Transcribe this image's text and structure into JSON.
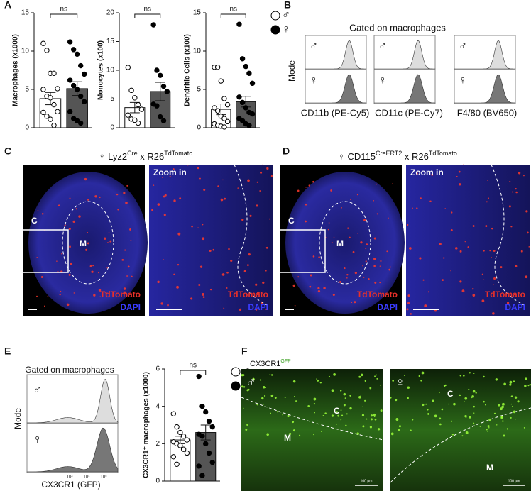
{
  "panel_labels": [
    "A",
    "B",
    "C",
    "D",
    "E",
    "F"
  ],
  "chart_data": [
    {
      "type": "bar",
      "ylabel": "Macrophages (x1000)",
      "ylim": [
        0,
        15
      ],
      "yticks": [
        0,
        5,
        10,
        15
      ],
      "annotation": "ns",
      "series": [
        {
          "name": "♂",
          "color": "#ffffff",
          "values": [
            3.8
          ],
          "errors": [
            0.8
          ],
          "points": [
            11,
            10.1,
            7.1,
            7.1,
            5.1,
            5.0,
            4.1,
            3.9,
            3.0,
            2.1,
            2.0,
            1.5,
            1.1,
            0.3
          ]
        },
        {
          "name": "♀",
          "color": "#555555",
          "values": [
            5.1
          ],
          "errors": [
            0.9
          ],
          "points": [
            11.2,
            10.2,
            9.6,
            8.1,
            7.0,
            6.2,
            5.5,
            5.0,
            4.1,
            3.4,
            2.1,
            1.2,
            0.9,
            0.6
          ]
        }
      ]
    },
    {
      "type": "bar",
      "ylabel": "Monocytes (x100)",
      "ylim": [
        0,
        20
      ],
      "yticks": [
        0,
        5,
        10,
        15,
        20
      ],
      "annotation": "ns",
      "series": [
        {
          "name": "♂",
          "color": "#ffffff",
          "values": [
            3.5
          ],
          "errors": [
            0.9
          ],
          "points": [
            10.5,
            6.5,
            5.2,
            4.0,
            3.2,
            2.2,
            1.5,
            1.3,
            0.8
          ]
        },
        {
          "name": "♀",
          "color": "#555555",
          "values": [
            6.3
          ],
          "errors": [
            1.6
          ],
          "points": [
            17.9,
            10.0,
            9.1,
            7.2,
            6.3,
            4.1,
            3.8,
            1.9,
            1.2
          ]
        }
      ]
    },
    {
      "type": "bar",
      "ylabel": "Dendritic Cells (x100)",
      "ylim": [
        0,
        15
      ],
      "yticks": [
        0,
        5,
        10,
        15
      ],
      "annotation": "ns",
      "legend": "right",
      "series": [
        {
          "name": "♂",
          "color": "#ffffff",
          "values": [
            2.4
          ],
          "errors": [
            0.7
          ],
          "points": [
            7.9,
            7.9,
            6.1,
            3.8,
            3.0,
            2.6,
            2.2,
            1.5,
            1.2,
            0.8,
            0.5,
            0.3,
            0.2,
            0.1
          ]
        },
        {
          "name": "♀",
          "color": "#555555",
          "values": [
            3.4
          ],
          "errors": [
            0.7
          ],
          "points": [
            13.5,
            9.0,
            8.0,
            7.1,
            5.8,
            4.0,
            3.3,
            2.6,
            2.0,
            1.8,
            1.2,
            0.9,
            0.5,
            0.3
          ]
        }
      ]
    },
    {
      "type": "bar",
      "ylabel": "CX3CR1⁺ macrophages (x1000)",
      "ylim": [
        0,
        6
      ],
      "yticks": [
        0,
        2,
        4,
        6
      ],
      "annotation": "ns",
      "legend": "right",
      "series": [
        {
          "name": "♂",
          "color": "#ffffff",
          "values": [
            2.2
          ],
          "errors": [
            0.2
          ],
          "points": [
            3.6,
            2.9,
            2.6,
            2.4,
            2.2,
            2.1,
            2.0,
            1.9,
            1.7,
            1.5,
            1.3,
            0.9
          ]
        },
        {
          "name": "♀",
          "color": "#555555",
          "values": [
            2.6
          ],
          "errors": [
            0.4
          ],
          "points": [
            5.6,
            4.0,
            3.7,
            3.2,
            2.9,
            2.5,
            2.4,
            2.0,
            1.5,
            1.0,
            0.8,
            0.3
          ]
        }
      ]
    }
  ],
  "flow_B": {
    "title": "Gated on macrophages",
    "ylabel": "Mode",
    "markers": [
      "CD11b (PE-Cy5)",
      "CD11c (PE-Cy7)",
      "F4/80 (BV650)"
    ],
    "sexes": [
      "♂",
      "♀"
    ]
  },
  "panel_C": {
    "title": [
      "♀ Lyz2",
      "Cre",
      " x R26",
      "TdTomato"
    ],
    "zoom": "Zoom in",
    "regions": [
      "C",
      "M"
    ],
    "channels": [
      "TdTomato",
      "DAPI"
    ]
  },
  "panel_D": {
    "title": [
      "♀ CD115",
      "CreERT2",
      " x R26",
      "TdTomato"
    ],
    "zoom": "Zoom in",
    "regions": [
      "C",
      "M"
    ],
    "channels": [
      "TdTomato",
      "DAPI"
    ]
  },
  "flow_E": {
    "title": "Gated on macrophages",
    "ylabel": "Mode",
    "xlabel": "CX3CR1 (GFP)",
    "sexes": [
      "♂",
      "♀"
    ],
    "xtick_labels": [
      "10³",
      "10⁴",
      "10⁵"
    ]
  },
  "panel_F": {
    "title": [
      "CX3CR1",
      "GFP"
    ],
    "sexes": [
      "♂",
      "♀"
    ],
    "regions": [
      "C",
      "M"
    ],
    "scale": "100 µm"
  }
}
